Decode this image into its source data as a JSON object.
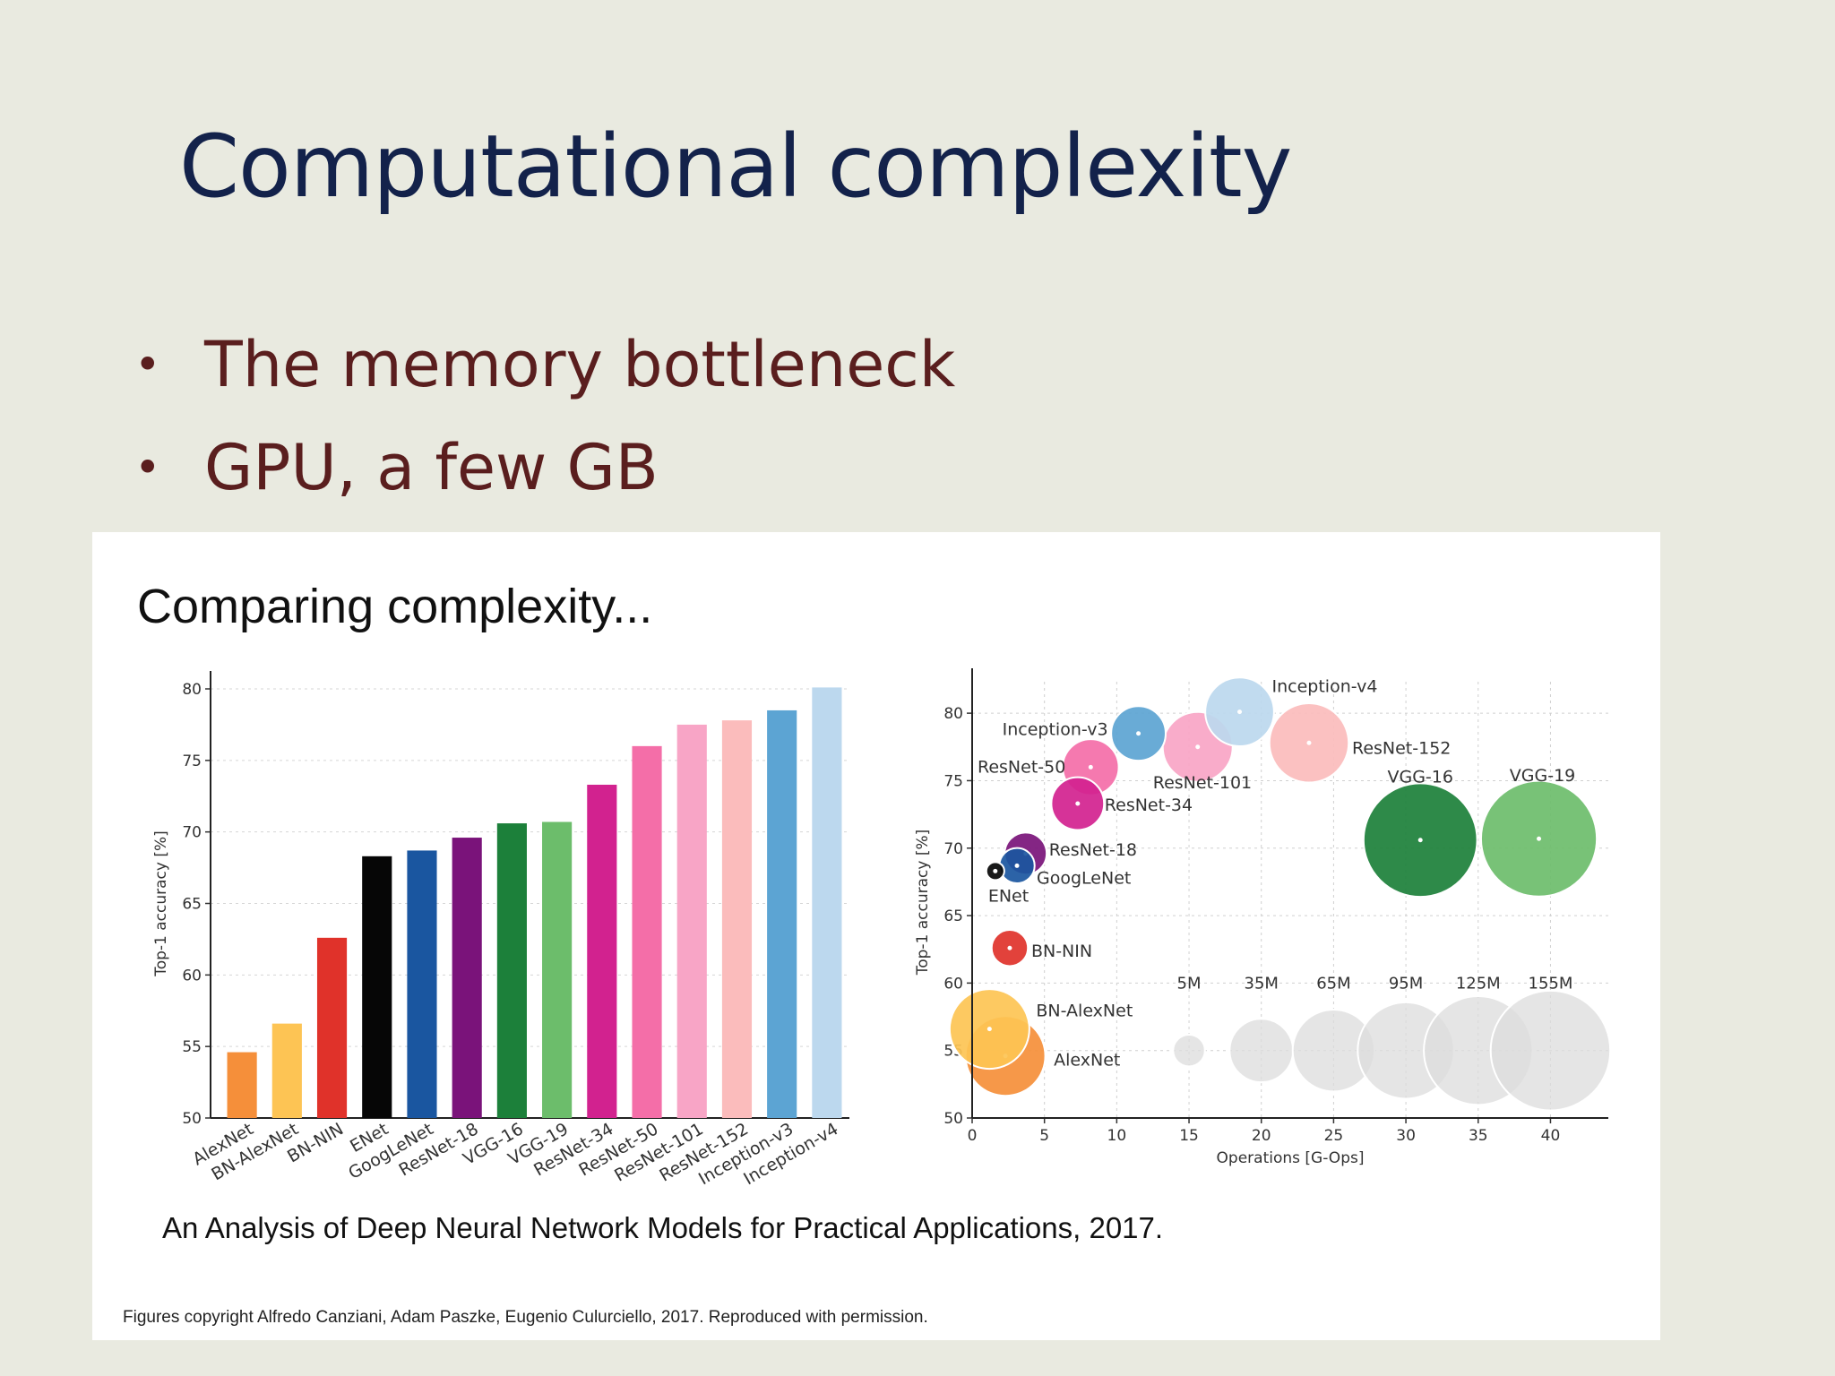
{
  "slide": {
    "title": "Computational complexity",
    "bullets": [
      "The memory bottleneck",
      "GPU, a few GB"
    ]
  },
  "figure": {
    "title": "Comparing complexity...",
    "caption": "An Analysis of Deep Neural Network Models for Practical Applications, 2017.",
    "copyright": "Figures copyright Alfredo Canziani, Adam Paszke, Eugenio Culurciello, 2017. Reproduced with permission."
  },
  "chart_data": [
    {
      "type": "bar",
      "title": "",
      "xlabel": "",
      "ylabel": "Top-1 accuracy [%]",
      "ylim": [
        50,
        80
      ],
      "yticks": [
        50,
        55,
        60,
        65,
        70,
        75,
        80
      ],
      "grid": true,
      "categories": [
        "AlexNet",
        "BN-AlexNet",
        "BN-NIN",
        "ENet",
        "GoogLeNet",
        "ResNet-18",
        "VGG-16",
        "VGG-19",
        "ResNet-34",
        "ResNet-50",
        "ResNet-101",
        "ResNet-152",
        "Inception-v3",
        "Inception-v4"
      ],
      "values": [
        54.6,
        56.6,
        62.6,
        68.3,
        68.7,
        69.6,
        70.6,
        70.7,
        73.3,
        76.0,
        77.5,
        77.8,
        78.5,
        80.1
      ],
      "colors": [
        "#f58f3a",
        "#fdc454",
        "#e0322a",
        "#060606",
        "#1a56a0",
        "#7a137a",
        "#1c803a",
        "#6cbd6b",
        "#d2228f",
        "#f46ea8",
        "#f8a5c6",
        "#fbbcbc",
        "#5ca4d3",
        "#bcd8ee"
      ]
    },
    {
      "type": "scatter",
      "title": "",
      "xlabel": "Operations [G-Ops]",
      "ylabel": "Top-1 accuracy [%]",
      "xlim": [
        0,
        44
      ],
      "ylim": [
        50,
        82
      ],
      "xticks": [
        0,
        5,
        10,
        15,
        20,
        25,
        30,
        35,
        40
      ],
      "yticks": [
        50,
        55,
        60,
        65,
        70,
        75,
        80
      ],
      "grid": true,
      "points": [
        {
          "name": "AlexNet",
          "x": 2.3,
          "y": 54.6,
          "params_M": 61,
          "color": "#f58f3a"
        },
        {
          "name": "BN-AlexNet",
          "x": 1.2,
          "y": 56.6,
          "params_M": 61,
          "color": "#fdc454"
        },
        {
          "name": "BN-NIN",
          "x": 2.6,
          "y": 62.6,
          "params_M": 7.6,
          "color": "#e0322a"
        },
        {
          "name": "ENet",
          "x": 1.6,
          "y": 68.3,
          "params_M": 0.4,
          "color": "#060606"
        },
        {
          "name": "GoogLeNet",
          "x": 3.1,
          "y": 68.7,
          "params_M": 7,
          "color": "#1a56a0"
        },
        {
          "name": "ResNet-18",
          "x": 3.7,
          "y": 69.6,
          "params_M": 11.7,
          "color": "#7a137a"
        },
        {
          "name": "VGG-16",
          "x": 31,
          "y": 70.6,
          "params_M": 138,
          "color": "#1c803a"
        },
        {
          "name": "VGG-19",
          "x": 39.2,
          "y": 70.7,
          "params_M": 144,
          "color": "#6cbd6b"
        },
        {
          "name": "ResNet-34",
          "x": 7.3,
          "y": 73.3,
          "params_M": 21.8,
          "color": "#d2228f"
        },
        {
          "name": "ResNet-50",
          "x": 8.2,
          "y": 76.0,
          "params_M": 25.6,
          "color": "#f46ea8"
        },
        {
          "name": "Inception-v3",
          "x": 11.5,
          "y": 78.5,
          "params_M": 23.8,
          "color": "#5ca4d3"
        },
        {
          "name": "ResNet-101",
          "x": 15.6,
          "y": 77.5,
          "params_M": 44.5,
          "color": "#f8a5c6"
        },
        {
          "name": "Inception-v4",
          "x": 18.5,
          "y": 80.1,
          "params_M": 42.7,
          "color": "#bcd8ee"
        },
        {
          "name": "ResNet-152",
          "x": 23.3,
          "y": 77.8,
          "params_M": 60.2,
          "color": "#fbbcbc"
        }
      ],
      "size_legend": [
        {
          "label": "5M",
          "params_M": 5,
          "x": 15
        },
        {
          "label": "35M",
          "params_M": 35,
          "x": 20
        },
        {
          "label": "65M",
          "params_M": 65,
          "x": 25
        },
        {
          "label": "95M",
          "params_M": 95,
          "x": 30
        },
        {
          "label": "125M",
          "params_M": 125,
          "x": 35
        },
        {
          "label": "155M",
          "params_M": 155,
          "x": 40
        }
      ],
      "size_legend_y": 55,
      "size_legend_color": "#dcdcdc"
    }
  ]
}
